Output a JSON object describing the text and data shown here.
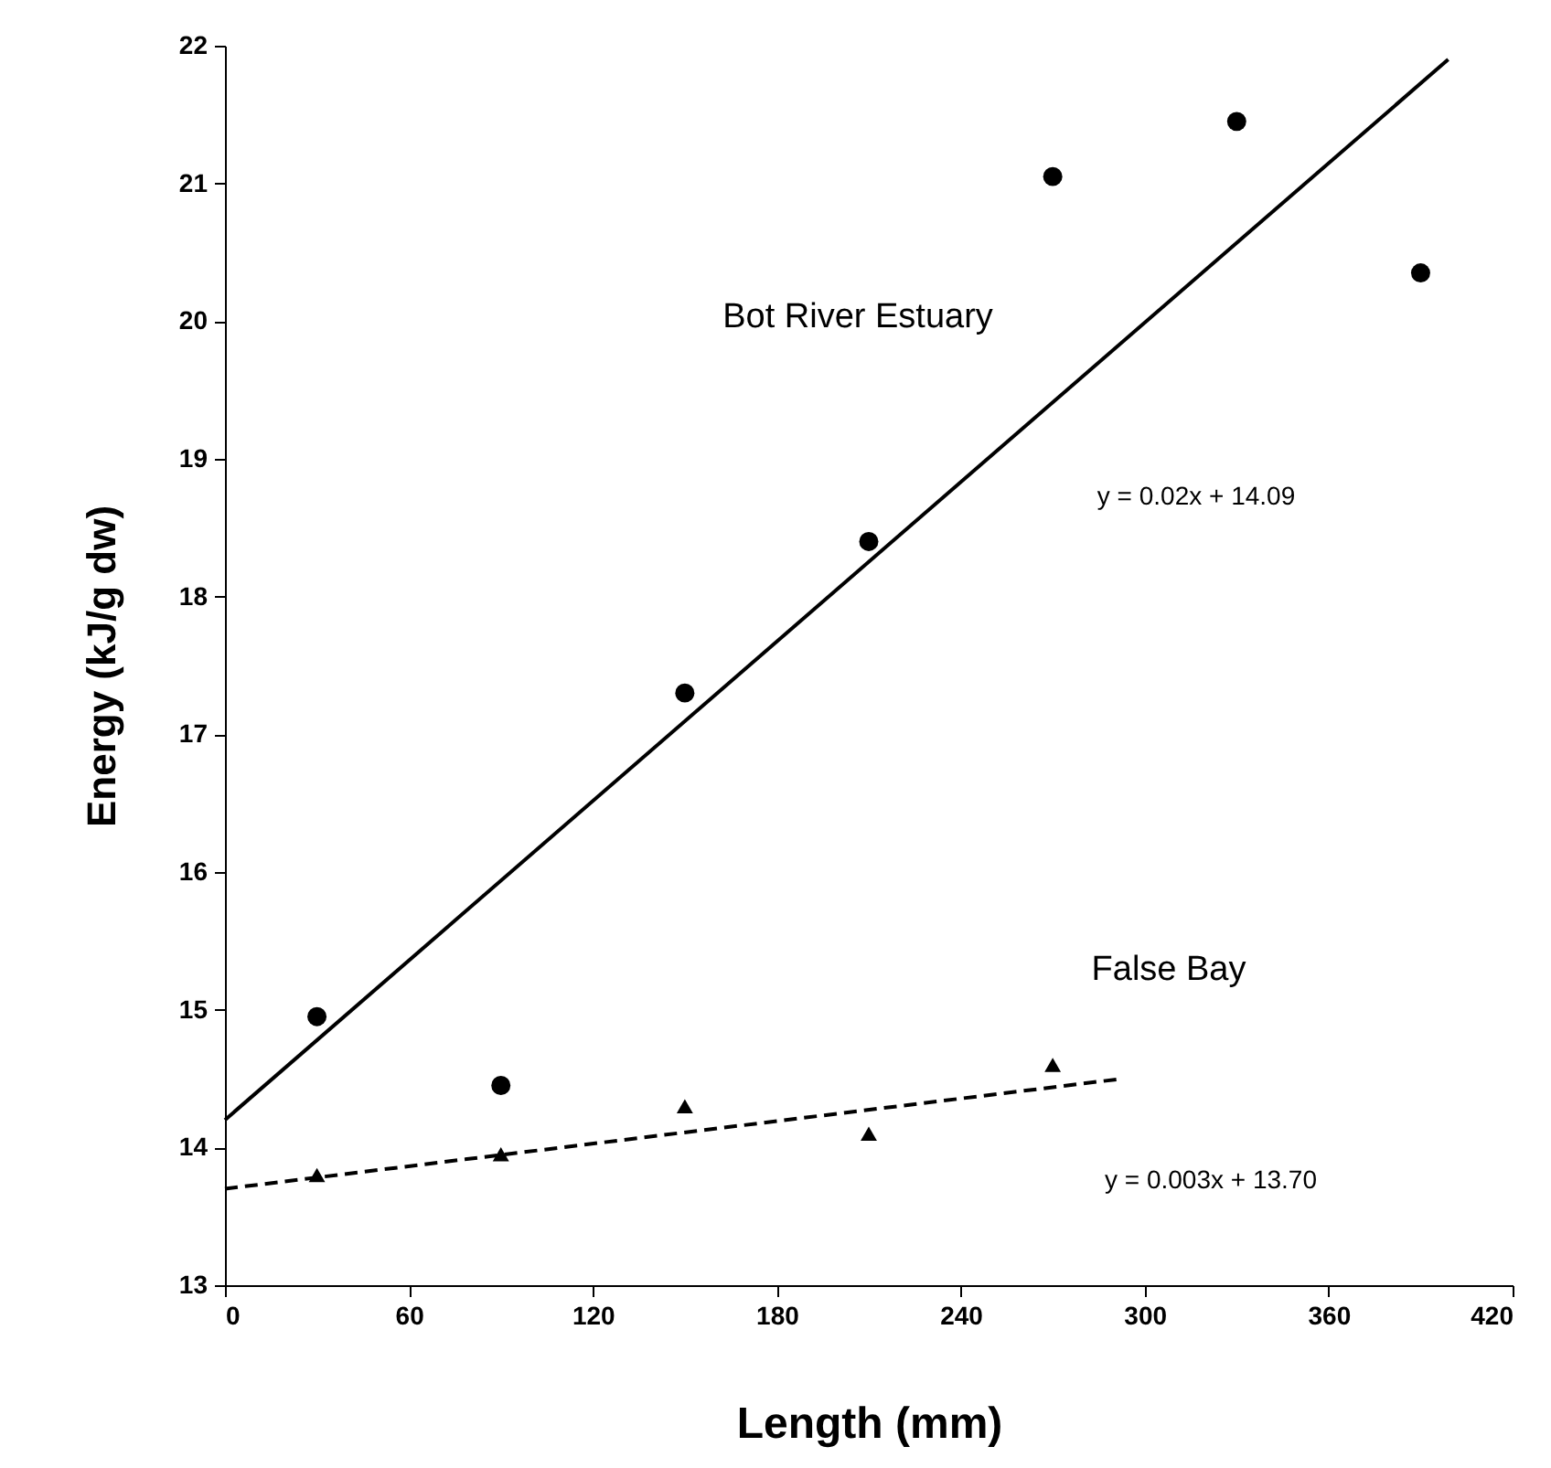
{
  "chart_data": {
    "type": "scatter",
    "xlabel": "Length (mm)",
    "ylabel": "Energy (kJ/g dw)",
    "xlim": [
      0,
      420
    ],
    "ylim": [
      13,
      22
    ],
    "xticks": [
      0,
      60,
      120,
      180,
      240,
      300,
      360,
      420
    ],
    "yticks": [
      13,
      14,
      15,
      16,
      17,
      18,
      19,
      20,
      21,
      22
    ],
    "series": [
      {
        "marker": "circle",
        "color": "#000000",
        "x": [
          30,
          90,
          150,
          210,
          270,
          330,
          390
        ],
        "values": [
          14.95,
          14.45,
          17.3,
          18.4,
          21.05,
          21.45,
          20.35
        ]
      },
      {
        "name": "False Bay",
        "marker": "triangle",
        "color": "#000000",
        "x": [
          30,
          90,
          150,
          210,
          270
        ],
        "values": [
          13.8,
          13.95,
          14.3,
          14.1,
          14.6
        ]
      },
      {
        "type": "line",
        "name": "Bot River Estuary",
        "marker": "none",
        "line_style": "solid",
        "color": "#000000",
        "x": [
          0,
          399
        ],
        "values": [
          14.2,
          21.9
        ]
      },
      {
        "type": "line",
        "marker": "none",
        "line_style": "dashed",
        "color": "#000000",
        "x": [
          0,
          293
        ],
        "values": [
          13.7,
          14.5
        ]
      }
    ],
    "annotations": [
      "y = 0.02x + 14.09",
      "y = 0.003x + 13.70"
    ]
  }
}
